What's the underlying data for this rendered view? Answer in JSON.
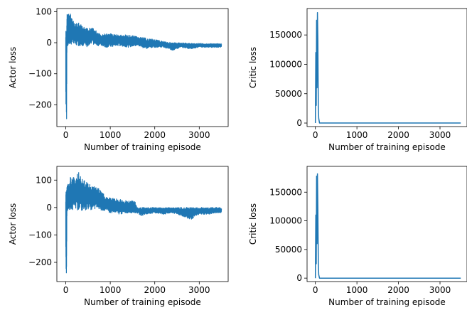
{
  "colors": {
    "series": "#1f77b4",
    "axis": "#000000",
    "background": "#ffffff"
  },
  "chart_data": [
    {
      "type": "line",
      "xlabel": "Number of training episode",
      "ylabel": "Actor loss",
      "xlim": [
        -200,
        3650
      ],
      "ylim": [
        -270,
        110
      ],
      "xticks": [
        0,
        1000,
        2000,
        3000
      ],
      "xticklabels": [
        "0",
        "1000",
        "2000",
        "3000"
      ],
      "yticks": [
        100,
        0,
        -100,
        -200
      ],
      "yticklabels": [
        "100",
        "0",
        "−100",
        "−200"
      ],
      "grid": false,
      "series": [
        {
          "x": [
            0,
            10,
            15,
            20,
            25,
            30,
            40,
            60,
            80,
            100,
            150,
            200,
            300,
            400,
            500,
            600,
            700,
            800,
            900,
            1000,
            1200,
            1400,
            1600,
            1800,
            2000,
            2200,
            2400,
            2600,
            2800,
            3000,
            3200,
            3400,
            3500
          ],
          "y_upper": [
            45,
            40,
            45,
            50,
            90,
            95,
            90,
            95,
            85,
            100,
            75,
            60,
            65,
            50,
            45,
            55,
            35,
            25,
            30,
            30,
            25,
            25,
            20,
            15,
            10,
            5,
            0,
            0,
            -2,
            -2,
            -3,
            -3,
            -3
          ],
          "y_lower": [
            -180,
            -250,
            -255,
            -250,
            -40,
            -5,
            -15,
            -10,
            -5,
            -5,
            -5,
            -10,
            -10,
            -10,
            -15,
            -5,
            -10,
            -10,
            -15,
            -15,
            -10,
            -15,
            -10,
            -20,
            -15,
            -15,
            -25,
            -15,
            -20,
            -15,
            -15,
            -15,
            -15
          ]
        }
      ]
    },
    {
      "type": "line",
      "xlabel": "Number of training episode",
      "ylabel": "Critic loss",
      "xlim": [
        -200,
        3650
      ],
      "ylim": [
        -6000,
        195000
      ],
      "xticks": [
        0,
        1000,
        2000,
        3000
      ],
      "xticklabels": [
        "0",
        "1000",
        "2000",
        "3000"
      ],
      "yticks": [
        0,
        50000,
        100000,
        150000
      ],
      "yticklabels": [
        "0",
        "50000",
        "100000",
        "150000"
      ],
      "grid": false,
      "series": [
        {
          "x": [
            0,
            10,
            20,
            30,
            40,
            50,
            60,
            70,
            80,
            100,
            150,
            200,
            500,
            1000,
            2000,
            3000,
            3500
          ],
          "y": [
            0,
            120000,
            30000,
            175000,
            60000,
            188000,
            140000,
            30000,
            8000,
            0,
            0,
            0,
            0,
            0,
            0,
            0,
            0
          ]
        }
      ]
    },
    {
      "type": "line",
      "xlabel": "Number of training episode",
      "ylabel": "Actor loss",
      "xlim": [
        -200,
        3650
      ],
      "ylim": [
        -270,
        150
      ],
      "xticks": [
        0,
        1000,
        2000,
        3000
      ],
      "xticklabels": [
        "0",
        "1000",
        "2000",
        "3000"
      ],
      "yticks": [
        100,
        0,
        -100,
        -200
      ],
      "yticklabels": [
        "100",
        "0",
        "−100",
        "−200"
      ],
      "grid": false,
      "series": [
        {
          "x": [
            0,
            10,
            15,
            20,
            25,
            30,
            40,
            60,
            80,
            100,
            200,
            300,
            400,
            500,
            600,
            700,
            800,
            900,
            1000,
            1200,
            1400,
            1550,
            1600,
            1700,
            1800,
            2000,
            2200,
            2400,
            2600,
            2800,
            3000,
            3200,
            3400,
            3500
          ],
          "y_upper": [
            70,
            75,
            70,
            60,
            75,
            80,
            90,
            85,
            80,
            110,
            110,
            130,
            100,
            90,
            80,
            75,
            60,
            40,
            35,
            30,
            25,
            25,
            0,
            0,
            0,
            0,
            0,
            0,
            0,
            0,
            0,
            0,
            0,
            0
          ],
          "y_lower": [
            -200,
            -240,
            -260,
            -250,
            -40,
            -20,
            -10,
            -5,
            -10,
            -5,
            -10,
            -10,
            -15,
            -5,
            -10,
            -5,
            -10,
            -15,
            -20,
            -25,
            -20,
            -20,
            -20,
            -30,
            -25,
            -20,
            -25,
            -20,
            -30,
            -45,
            -25,
            -25,
            -20,
            -20
          ]
        }
      ]
    },
    {
      "type": "line",
      "xlabel": "Number of training episode",
      "ylabel": "Critic loss",
      "xlim": [
        -200,
        3650
      ],
      "ylim": [
        -6000,
        195000
      ],
      "xticks": [
        0,
        1000,
        2000,
        3000
      ],
      "xticklabels": [
        "0",
        "1000",
        "2000",
        "3000"
      ],
      "yticks": [
        0,
        50000,
        100000,
        150000
      ],
      "yticklabels": [
        "0",
        "50000",
        "100000",
        "150000"
      ],
      "grid": false,
      "series": [
        {
          "x": [
            0,
            10,
            20,
            30,
            40,
            50,
            60,
            70,
            80,
            100,
            150,
            200,
            500,
            1000,
            2000,
            3000,
            3500
          ],
          "y": [
            0,
            110000,
            25000,
            178000,
            60000,
            182000,
            120000,
            30000,
            6000,
            0,
            0,
            0,
            0,
            0,
            0,
            0,
            0
          ]
        }
      ]
    }
  ]
}
